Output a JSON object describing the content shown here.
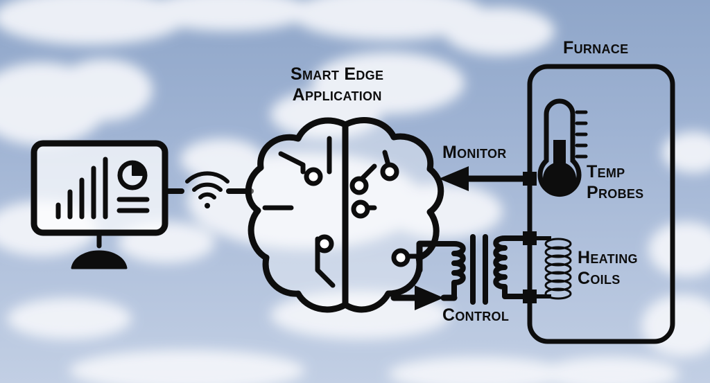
{
  "labels": {
    "furnace": "Furnace",
    "app_line1": "Smart Edge",
    "app_line2": "Application",
    "monitor": "Monitor",
    "control": "Control",
    "temp_line1": "Temp",
    "temp_line2": "Probes",
    "coils_line1": "Heating",
    "coils_line2": "Coils"
  },
  "colors": {
    "ink": "#0d0d0d",
    "cloud": "#f4f6fa",
    "brain_fill": "#ffffff"
  },
  "icons": [
    "dashboard-monitor-icon",
    "wifi-icon",
    "brain-circuit-icon",
    "transformer-icon",
    "thermometer-icon",
    "heating-coil-icon"
  ]
}
